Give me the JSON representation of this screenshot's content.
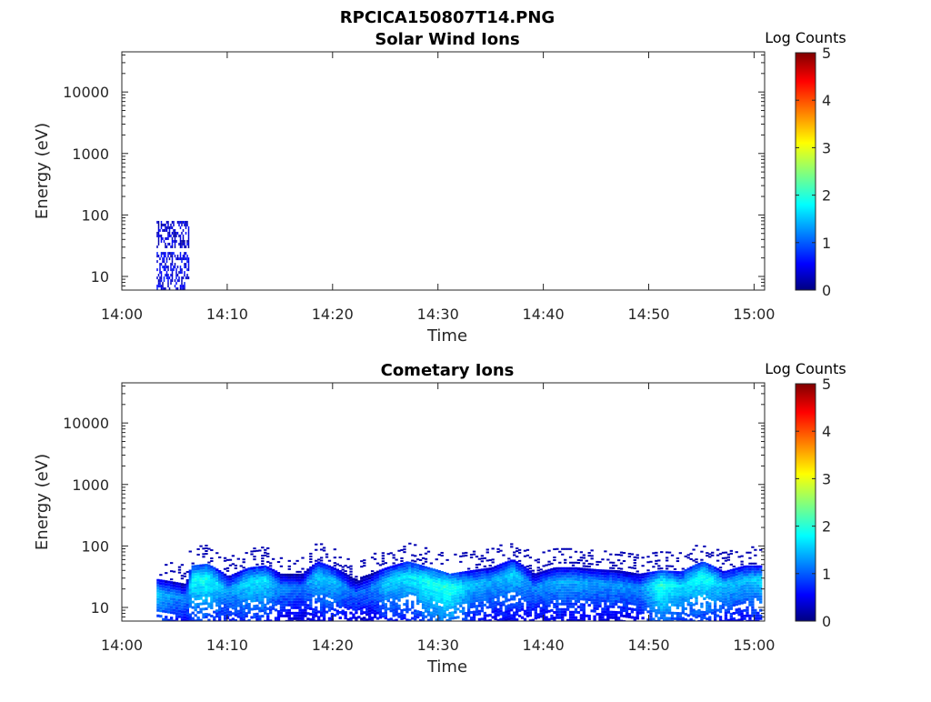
{
  "figure": {
    "filename_title": "RPCICA150807T14.PNG"
  },
  "chart_data": [
    {
      "type": "heatmap",
      "title": "Solar Wind Ions",
      "xlabel": "Time",
      "ylabel": "Energy (eV)",
      "x_ticks": [
        "14:00",
        "14:10",
        "14:20",
        "14:30",
        "14:40",
        "14:50",
        "15:00"
      ],
      "y_ticks": [
        "10",
        "100",
        "1000",
        "10000"
      ],
      "y_scale": "log",
      "ylim_eV": [
        6,
        45000
      ],
      "xlim_minutes": [
        0,
        61
      ],
      "colorbar": {
        "label": "Log Counts",
        "ticks": [
          "0",
          "1",
          "2",
          "3",
          "4",
          "5"
        ],
        "range": [
          0,
          5
        ],
        "colormap": "jet"
      },
      "features": [
        {
          "t_start_min": 3.3,
          "t_end_min": 6.4,
          "e_low_eV": 6,
          "e_high_eV": 25,
          "log_counts": 0.2
        },
        {
          "t_start_min": 3.3,
          "t_end_min": 6.4,
          "e_low_eV": 30,
          "e_high_eV": 80,
          "log_counts": 0.1
        }
      ]
    },
    {
      "type": "heatmap",
      "title": "Cometary Ions",
      "xlabel": "Time",
      "ylabel": "Energy (eV)",
      "x_ticks": [
        "14:00",
        "14:10",
        "14:20",
        "14:30",
        "14:40",
        "14:50",
        "15:00"
      ],
      "y_ticks": [
        "10",
        "100",
        "1000",
        "10000"
      ],
      "y_scale": "log",
      "ylim_eV": [
        6,
        45000
      ],
      "xlim_minutes": [
        0,
        61
      ],
      "colorbar": {
        "label": "Log Counts",
        "ticks": [
          "0",
          "1",
          "2",
          "3",
          "4",
          "5"
        ],
        "range": [
          0,
          5
        ],
        "colormap": "jet"
      },
      "band_center_eV": {
        "t_min": [
          3.3,
          6,
          6.5,
          8,
          10,
          12,
          13.5,
          15,
          17,
          18.5,
          20,
          22,
          23.5,
          25,
          27,
          29,
          31,
          33,
          35,
          37,
          39,
          41,
          43,
          45,
          47,
          49,
          51,
          53,
          55,
          57,
          59,
          60.5
        ],
        "e_eV": [
          18,
          15,
          30,
          32,
          20,
          28,
          30,
          22,
          22,
          35,
          28,
          18,
          22,
          28,
          35,
          28,
          22,
          25,
          28,
          38,
          22,
          28,
          28,
          26,
          25,
          22,
          25,
          24,
          35,
          24,
          30,
          30
        ],
        "log_counts": [
          1.6,
          1.2,
          1.9,
          2.0,
          1.4,
          1.8,
          1.8,
          1.3,
          1.2,
          1.7,
          1.6,
          1.1,
          1.2,
          1.7,
          1.8,
          2.0,
          2.1,
          1.6,
          1.5,
          1.7,
          1.3,
          1.5,
          1.5,
          1.4,
          1.4,
          1.3,
          2.1,
          1.7,
          2.0,
          1.6,
          1.6,
          1.7
        ]
      },
      "data_gaps_min": [
        [
          0,
          3.3
        ]
      ]
    }
  ]
}
